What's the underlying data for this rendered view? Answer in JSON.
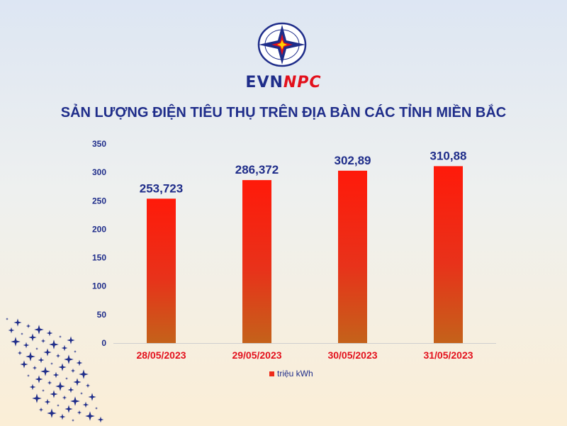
{
  "brand": {
    "part1": "EVN",
    "part2": "NPC"
  },
  "colors": {
    "navy": "#1f2d8a",
    "red": "#e3101c",
    "bar_top": "#ff1a0a",
    "bar_bottom": "#c4621a"
  },
  "chart_data": {
    "type": "bar",
    "title": "SẢN LƯỢNG ĐIỆN TIÊU THỤ TRÊN ĐỊA BÀN CÁC TỈNH MIỀN BẮC",
    "categories": [
      "28/05/2023",
      "29/05/2023",
      "30/05/2023",
      "31/05/2023"
    ],
    "series": [
      {
        "name": "triệu kWh",
        "values": [
          253.723,
          286.372,
          302.89,
          310.88
        ],
        "labels": [
          "253,723",
          "286,372",
          "302,89",
          "310,88"
        ]
      }
    ],
    "ylim": [
      0,
      350
    ],
    "yticks": [
      0,
      50,
      100,
      150,
      200,
      250,
      300,
      350
    ],
    "grid": false,
    "legend": "bottom"
  }
}
